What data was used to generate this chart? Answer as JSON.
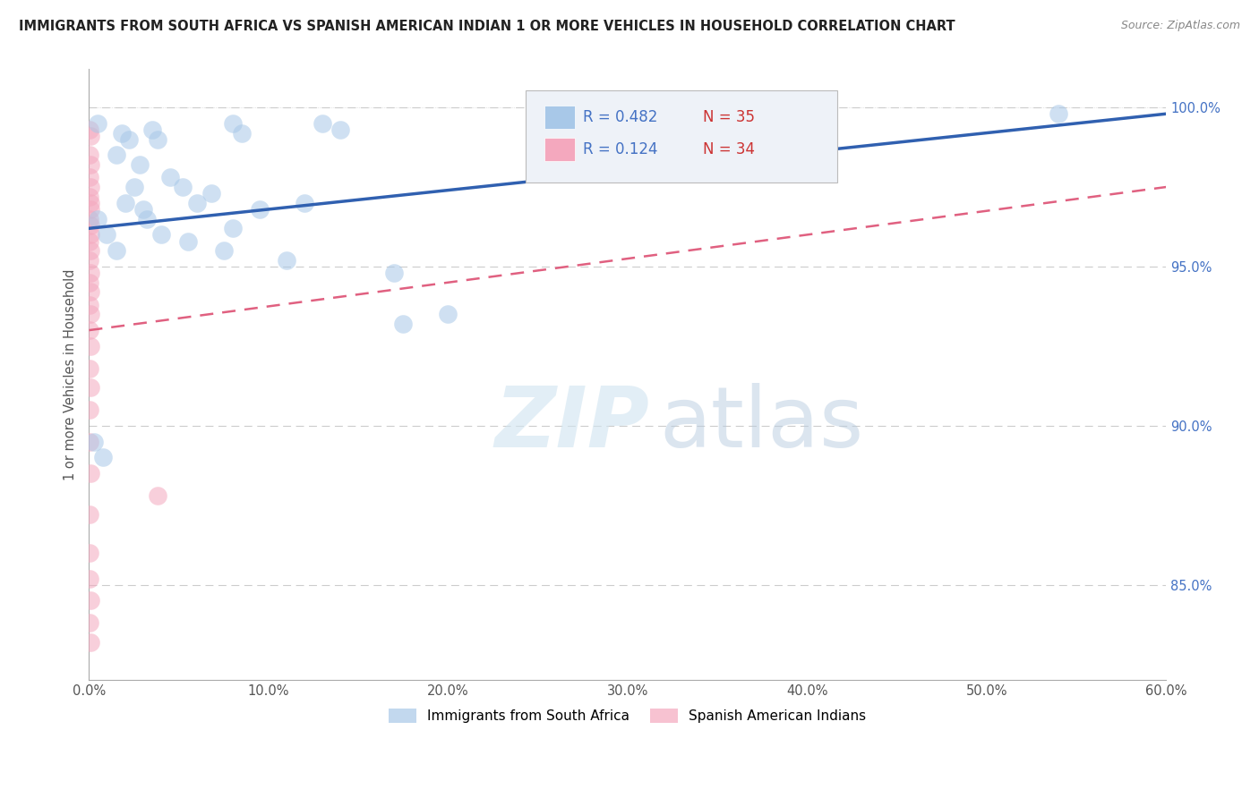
{
  "title": "IMMIGRANTS FROM SOUTH AFRICA VS SPANISH AMERICAN INDIAN 1 OR MORE VEHICLES IN HOUSEHOLD CORRELATION CHART",
  "source": "Source: ZipAtlas.com",
  "legend_blue_label": "Immigrants from South Africa",
  "legend_pink_label": "Spanish American Indians",
  "R_blue": 0.482,
  "N_blue": 35,
  "R_pink": 0.124,
  "N_pink": 34,
  "blue_color": "#a8c8e8",
  "pink_color": "#f4a8be",
  "trend_blue_color": "#3060b0",
  "trend_pink_color": "#e06080",
  "trend_pink_dash": [
    6,
    4
  ],
  "watermark_zip": "ZIP",
  "watermark_atlas": "atlas",
  "blue_dots": [
    [
      0.5,
      99.5
    ],
    [
      1.8,
      99.2
    ],
    [
      2.2,
      99.0
    ],
    [
      3.5,
      99.3
    ],
    [
      3.8,
      99.0
    ],
    [
      8.0,
      99.5
    ],
    [
      8.5,
      99.2
    ],
    [
      13.0,
      99.5
    ],
    [
      14.0,
      99.3
    ],
    [
      1.5,
      98.5
    ],
    [
      2.8,
      98.2
    ],
    [
      4.5,
      97.8
    ],
    [
      5.2,
      97.5
    ],
    [
      6.0,
      97.0
    ],
    [
      6.8,
      97.3
    ],
    [
      9.5,
      96.8
    ],
    [
      3.2,
      96.5
    ],
    [
      4.0,
      96.0
    ],
    [
      5.5,
      95.8
    ],
    [
      7.5,
      95.5
    ],
    [
      2.0,
      97.0
    ],
    [
      3.0,
      96.8
    ],
    [
      1.0,
      96.0
    ],
    [
      1.5,
      95.5
    ],
    [
      11.0,
      95.2
    ],
    [
      17.0,
      94.8
    ],
    [
      20.0,
      93.5
    ],
    [
      17.5,
      93.2
    ],
    [
      0.3,
      89.5
    ],
    [
      0.8,
      89.0
    ],
    [
      54.0,
      99.8
    ],
    [
      0.5,
      96.5
    ],
    [
      2.5,
      97.5
    ],
    [
      8.0,
      96.2
    ],
    [
      12.0,
      97.0
    ]
  ],
  "pink_dots": [
    [
      0.05,
      99.3
    ],
    [
      0.1,
      99.1
    ],
    [
      0.05,
      98.5
    ],
    [
      0.1,
      98.2
    ],
    [
      0.05,
      97.8
    ],
    [
      0.08,
      97.5
    ],
    [
      0.05,
      97.2
    ],
    [
      0.1,
      97.0
    ],
    [
      0.08,
      96.8
    ],
    [
      0.05,
      96.5
    ],
    [
      0.1,
      96.3
    ],
    [
      0.08,
      96.0
    ],
    [
      0.05,
      95.8
    ],
    [
      0.1,
      95.5
    ],
    [
      0.05,
      95.2
    ],
    [
      0.08,
      94.8
    ],
    [
      0.05,
      94.5
    ],
    [
      0.1,
      94.2
    ],
    [
      0.05,
      93.8
    ],
    [
      0.08,
      93.5
    ],
    [
      0.05,
      93.0
    ],
    [
      0.1,
      92.5
    ],
    [
      0.05,
      91.8
    ],
    [
      0.08,
      91.2
    ],
    [
      0.05,
      90.5
    ],
    [
      3.8,
      87.8
    ],
    [
      0.05,
      89.5
    ],
    [
      0.08,
      88.5
    ],
    [
      0.05,
      87.2
    ],
    [
      0.05,
      86.0
    ],
    [
      0.05,
      85.2
    ],
    [
      0.08,
      84.5
    ],
    [
      0.05,
      83.8
    ],
    [
      0.1,
      83.2
    ]
  ],
  "xmin": 0.0,
  "xmax": 60.0,
  "ymin": 82.0,
  "ymax": 101.2,
  "yticks": [
    85,
    90,
    95,
    100
  ],
  "ytick_labels": [
    "85.0%",
    "90.0%",
    "95.0%",
    "100.0%"
  ],
  "background_color": "#ffffff",
  "grid_color": "#cccccc",
  "ylabel_color": "#555555",
  "yaxis_right_color": "#4472c4",
  "title_color": "#222222",
  "source_color": "#888888"
}
